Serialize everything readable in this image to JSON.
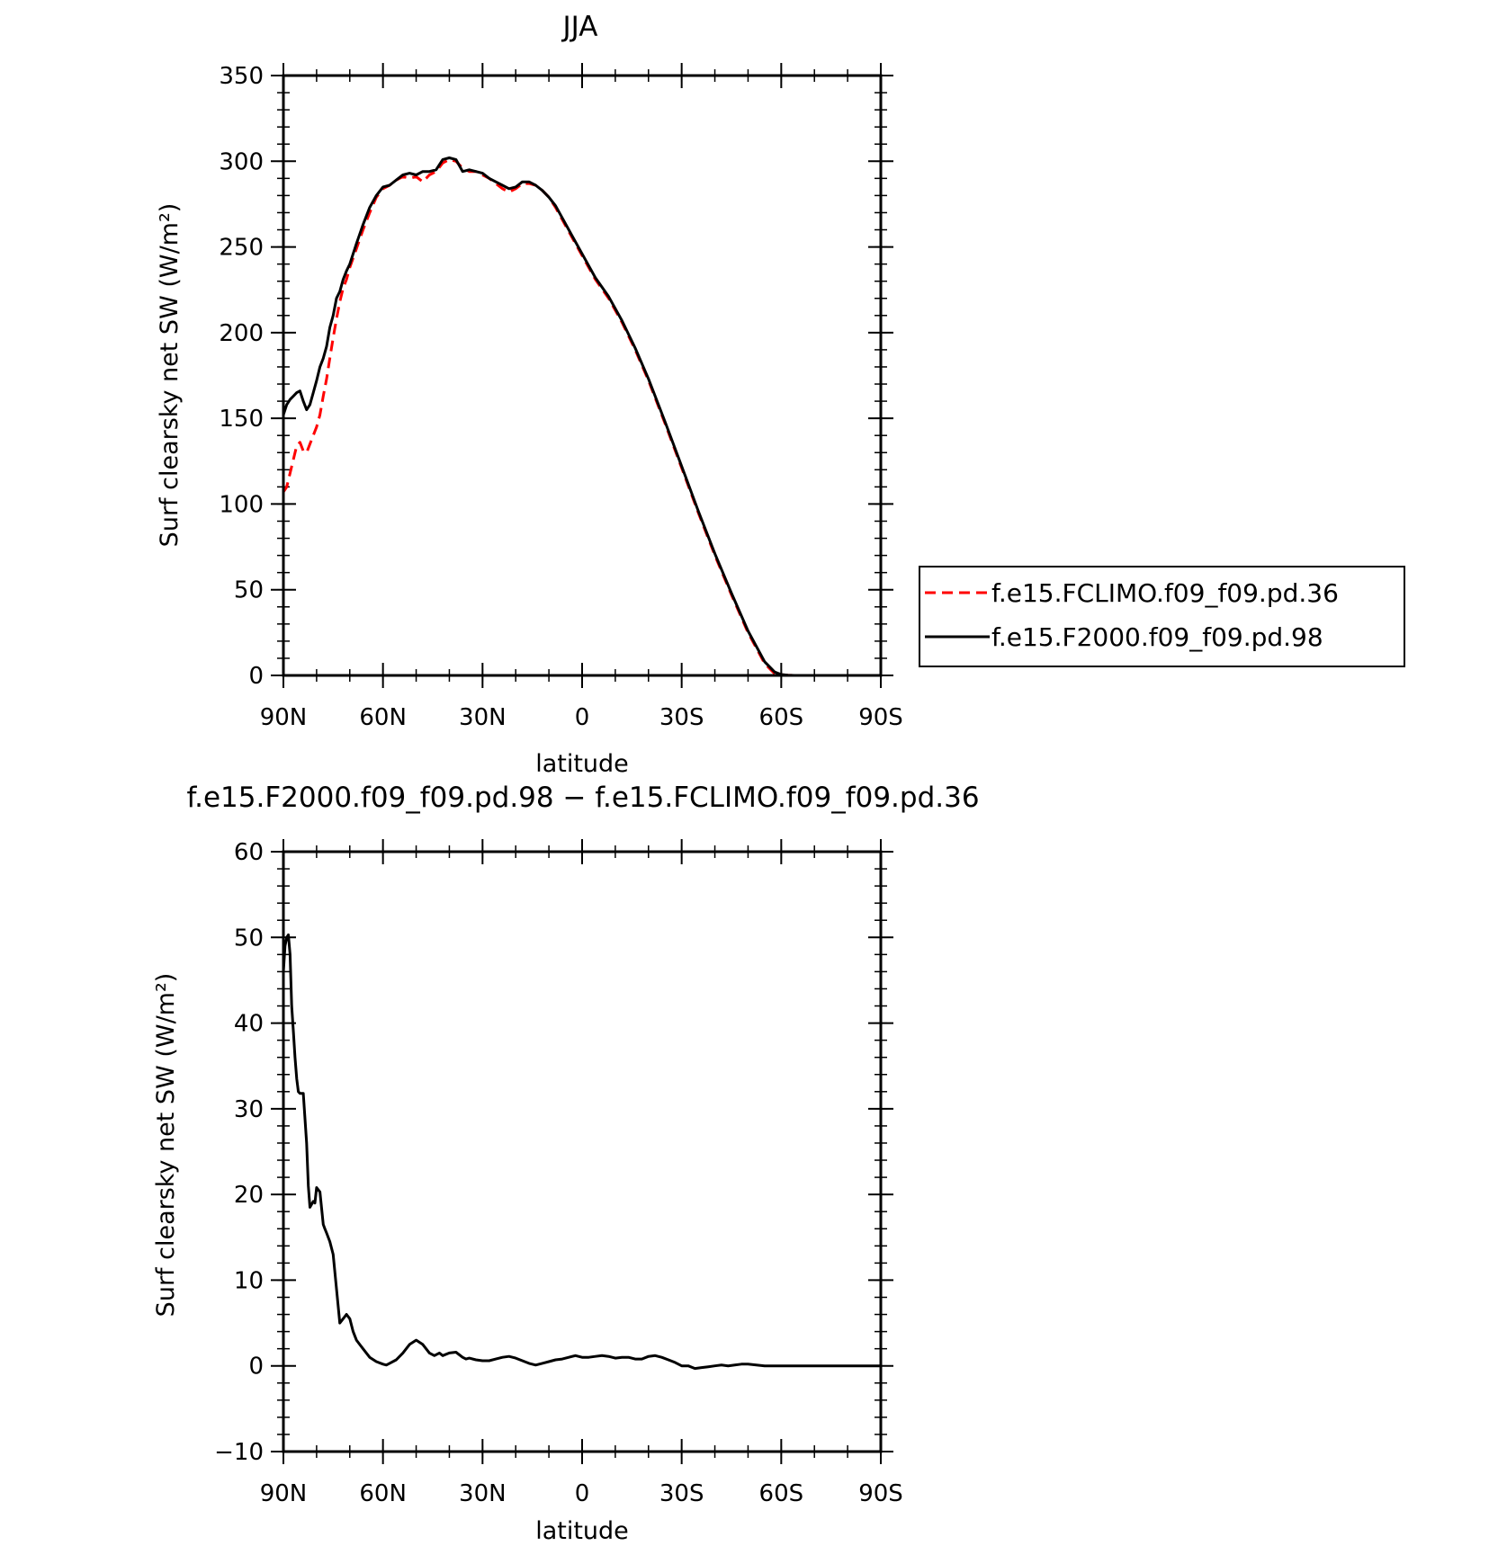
{
  "chart_data": [
    {
      "type": "line",
      "title": "JJA",
      "xlabel": "latitude",
      "ylabel": "Surf clearsky net SW (W/m²)",
      "xlim": [
        90,
        -90
      ],
      "ylim": [
        0,
        350
      ],
      "x_ticks": [
        {
          "value": 90,
          "label": "90N"
        },
        {
          "value": 60,
          "label": "60N"
        },
        {
          "value": 30,
          "label": "30N"
        },
        {
          "value": 0,
          "label": "0"
        },
        {
          "value": -30,
          "label": "30S"
        },
        {
          "value": -60,
          "label": "60S"
        },
        {
          "value": -90,
          "label": "90S"
        }
      ],
      "y_ticks": [
        0,
        50,
        100,
        150,
        200,
        250,
        300,
        350
      ],
      "legend": "right-outside",
      "series": [
        {
          "name": "f.e15.FCLIMO.f09_f09.pd.36",
          "color": "#ff0000",
          "dash": "dashed",
          "x": [
            90,
            89,
            88,
            87,
            86,
            85,
            84,
            83,
            82,
            81,
            80,
            79,
            78,
            77,
            76,
            75,
            74,
            73,
            72,
            71,
            70,
            68,
            66,
            64,
            62,
            60,
            58,
            56,
            54,
            52,
            50,
            48,
            46,
            44,
            42,
            40,
            38,
            36,
            34,
            32,
            30,
            28,
            26,
            24,
            22,
            20,
            18,
            16,
            14,
            12,
            10,
            8,
            6,
            4,
            2,
            0,
            -4,
            -8,
            -12,
            -16,
            -20,
            -25,
            -30,
            -35,
            -40,
            -45,
            -50,
            -55,
            -58,
            -60,
            -62,
            -64,
            -66,
            -68,
            -70,
            -75,
            -80,
            -85,
            -90
          ],
          "values": [
            107,
            110,
            118,
            126,
            134,
            136,
            131,
            130,
            135,
            140,
            145,
            152,
            163,
            173,
            185,
            197,
            208,
            218,
            226,
            231,
            238,
            249,
            260,
            270,
            279,
            284,
            286,
            289,
            291,
            290,
            291,
            288,
            292,
            294,
            299,
            301,
            300,
            296,
            294,
            294,
            292,
            290,
            287,
            284,
            282,
            284,
            287,
            287,
            286,
            283,
            279,
            273,
            266,
            259,
            252,
            245,
            231,
            220,
            206,
            190,
            172,
            147,
            121,
            95,
            70,
            47,
            25,
            7,
            1,
            0.4,
            0.1,
            0,
            0,
            0,
            0,
            0,
            0,
            0,
            0
          ]
        },
        {
          "name": "f.e15.F2000.f09_f09.pd.98",
          "color": "#000000",
          "dash": "solid",
          "x": [
            90,
            89,
            88,
            87,
            86,
            85,
            84,
            83,
            82,
            81,
            80,
            79,
            78,
            77,
            76,
            75,
            74,
            73,
            72,
            71,
            70,
            68,
            66,
            64,
            62,
            60,
            58,
            56,
            54,
            52,
            50,
            48,
            46,
            44,
            42,
            40,
            38,
            36,
            34,
            32,
            30,
            28,
            26,
            24,
            22,
            20,
            18,
            16,
            14,
            12,
            10,
            8,
            6,
            4,
            2,
            0,
            -4,
            -8,
            -12,
            -16,
            -20,
            -25,
            -30,
            -35,
            -40,
            -45,
            -50,
            -55,
            -58,
            -60,
            -62,
            -64,
            -66,
            -68,
            -70,
            -75,
            -80,
            -85,
            -90
          ],
          "values": [
            152,
            158,
            161,
            163,
            165,
            166,
            160,
            155,
            158,
            165,
            172,
            180,
            185,
            192,
            203,
            210,
            220,
            224,
            231,
            236,
            240,
            252,
            263,
            273,
            280,
            285,
            286,
            289,
            292,
            293,
            292,
            294,
            294,
            295,
            301,
            302,
            301,
            294,
            295,
            294,
            293,
            290,
            288,
            286,
            284,
            285,
            288,
            288,
            286,
            283,
            279,
            274,
            267,
            260,
            253,
            246,
            232,
            221,
            207,
            191,
            173,
            148,
            122,
            96,
            71,
            48,
            26,
            8,
            2,
            0.5,
            0.1,
            0,
            0,
            0,
            0,
            0,
            0,
            0,
            0
          ]
        }
      ]
    },
    {
      "type": "line",
      "title": "f.e15.F2000.f09_f09.pd.98 − f.e15.FCLIMO.f09_f09.pd.36",
      "xlabel": "latitude",
      "ylabel": "Surf clearsky net SW (W/m²)",
      "xlim": [
        90,
        -90
      ],
      "ylim": [
        -10,
        60
      ],
      "x_ticks": [
        {
          "value": 90,
          "label": "90N"
        },
        {
          "value": 60,
          "label": "60N"
        },
        {
          "value": 30,
          "label": "30N"
        },
        {
          "value": 0,
          "label": "0"
        },
        {
          "value": -30,
          "label": "30S"
        },
        {
          "value": -60,
          "label": "60S"
        },
        {
          "value": -90,
          "label": "90S"
        }
      ],
      "y_ticks": [
        -10,
        0,
        10,
        20,
        30,
        40,
        50,
        60
      ],
      "series": [
        {
          "color": "#000000",
          "dash": "solid",
          "x": [
            90,
            89.5,
            89,
            88.5,
            88,
            87.5,
            87,
            86.5,
            86,
            85.5,
            85,
            84,
            83,
            82.5,
            82,
            81,
            80.5,
            80,
            79,
            78,
            77.5,
            77,
            76,
            75,
            74,
            73,
            72,
            71,
            70,
            69,
            68,
            67,
            66,
            65,
            64,
            62,
            60,
            59,
            58,
            56,
            54,
            52,
            50,
            48,
            46,
            44.5,
            43,
            42,
            40,
            38,
            36,
            35,
            34,
            32,
            30,
            28,
            26,
            24,
            22,
            20,
            18,
            16,
            14,
            12,
            10,
            8,
            6,
            4,
            2,
            0,
            -2,
            -4,
            -6,
            -8,
            -10,
            -12,
            -14,
            -16,
            -18,
            -20,
            -22,
            -24,
            -26,
            -28,
            -30,
            -32,
            -34,
            -36,
            -38,
            -40,
            -42,
            -44,
            -46,
            -48,
            -50,
            -55,
            -60,
            -65,
            -70,
            -75,
            -80,
            -85,
            -90
          ],
          "values": [
            46,
            49,
            50,
            50.3,
            48,
            42,
            39,
            36,
            33.5,
            32,
            31.8,
            31.8,
            26,
            21,
            18.5,
            19.2,
            19,
            20.8,
            20.3,
            16.5,
            16,
            15.5,
            14.5,
            13,
            9,
            5,
            5.5,
            6,
            5.5,
            4,
            3,
            2.5,
            2,
            1.5,
            1,
            0.5,
            0.2,
            0.1,
            0.3,
            0.7,
            1.5,
            2.5,
            3,
            2.5,
            1.5,
            1.2,
            1.5,
            1.2,
            1.5,
            1.6,
            1,
            0.8,
            0.9,
            0.7,
            0.6,
            0.6,
            0.8,
            1,
            1.1,
            0.9,
            0.6,
            0.3,
            0.1,
            0.3,
            0.5,
            0.7,
            0.8,
            1,
            1.2,
            1,
            1,
            1.1,
            1.2,
            1.1,
            0.9,
            1,
            1,
            0.8,
            0.8,
            1.1,
            1.2,
            1,
            0.7,
            0.4,
            0,
            0,
            -0.3,
            -0.2,
            -0.1,
            0,
            0.1,
            0,
            0.1,
            0.2,
            0.2,
            0,
            0,
            0,
            0,
            0,
            0,
            0,
            0
          ]
        }
      ]
    }
  ]
}
